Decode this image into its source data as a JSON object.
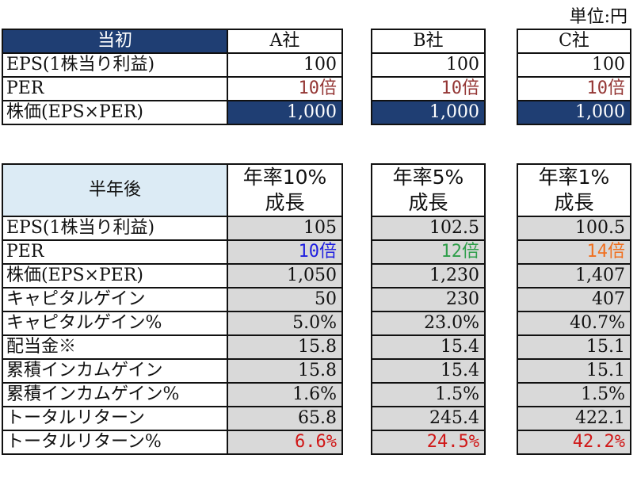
{
  "unit_label": "単位:円",
  "initial": {
    "header": "当初",
    "companies": [
      "A社",
      "B社",
      "C社"
    ],
    "rows": [
      {
        "label": "EPS(1株当り利益)",
        "values": [
          "100",
          "100",
          "100"
        ]
      },
      {
        "label": "PER",
        "values": [
          "10倍",
          "10倍",
          "10倍"
        ]
      },
      {
        "label": "株価(EPS×PER)",
        "values": [
          "1,000",
          "1,000",
          "1,000"
        ]
      }
    ]
  },
  "after": {
    "header": "半年後",
    "growth_top": [
      "年率10%",
      "年率5%",
      "年率1%"
    ],
    "growth_bottom": [
      "成長",
      "成長",
      "成長"
    ],
    "rows": [
      {
        "label": "EPS(1株当り利益)",
        "values": [
          "105",
          "102.5",
          "100.5"
        ]
      },
      {
        "label": "PER",
        "values": [
          "10倍",
          "12倍",
          "14倍"
        ]
      },
      {
        "label": "株価(EPS×PER)",
        "values": [
          "1,050",
          "1,230",
          "1,407"
        ]
      },
      {
        "label": "キャピタルゲイン",
        "values": [
          "50",
          "230",
          "407"
        ]
      },
      {
        "label": "キャピタルゲイン%",
        "values": [
          "5.0%",
          "23.0%",
          "40.7%"
        ]
      },
      {
        "label": "配当金※",
        "values": [
          "15.8",
          "15.4",
          "15.1"
        ]
      },
      {
        "label": "累積インカムゲイン",
        "values": [
          "15.8",
          "15.4",
          "15.1"
        ]
      },
      {
        "label": "累積インカムゲイン%",
        "values": [
          "1.6%",
          "1.5%",
          "1.5%"
        ]
      },
      {
        "label": "トータルリターン",
        "values": [
          "65.8",
          "245.4",
          "422.1"
        ]
      },
      {
        "label": "トータルリターン%",
        "values": [
          "6.6%",
          "24.5%",
          "42.2%"
        ]
      }
    ]
  },
  "colors": {
    "header_dark": "#1f3e73",
    "header_light": "#dcebf5",
    "cell_gray": "#d9d9d9",
    "per_initial": "#943634",
    "per_a_after": "#1f1fe0",
    "per_b_after": "#2e9e4a",
    "per_c_after": "#f07020",
    "total_return_pct": "#d01818"
  }
}
